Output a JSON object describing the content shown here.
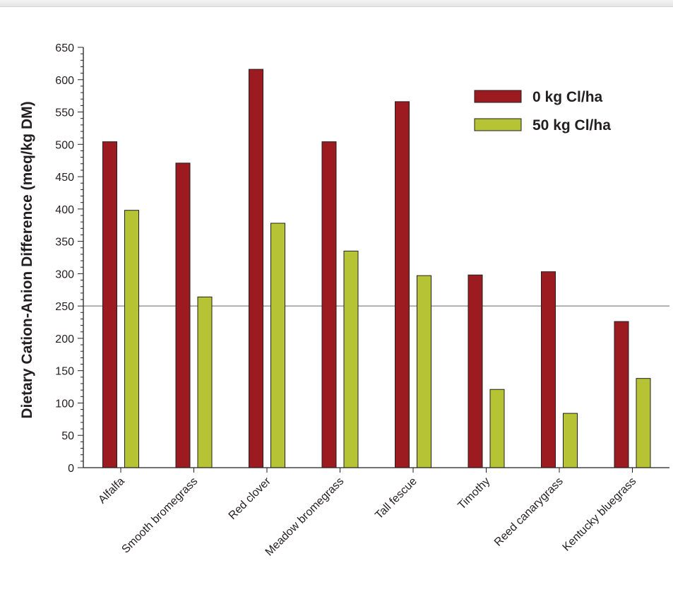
{
  "chart_data": {
    "type": "bar",
    "ylabel": "Dietary Cation-Anion Difference (meq/kg DM)",
    "xlabel": "",
    "ylim": [
      0,
      650
    ],
    "yticks": [
      0,
      50,
      100,
      150,
      200,
      250,
      300,
      350,
      400,
      450,
      500,
      550,
      600,
      650
    ],
    "reference_line": 250,
    "grid": false,
    "legend_position": "top-right",
    "categories": [
      "Alfalfa",
      "Smooth bromegrass",
      "Red clover",
      "Meadow bromegrass",
      "Tall fescue",
      "Timothy",
      "Reed canarygrass",
      "Kentucky bluegrass"
    ],
    "series": [
      {
        "name": "0 kg Cl/ha",
        "color": "#9b1b21",
        "values": [
          504,
          471,
          616,
          504,
          566,
          298,
          303,
          226
        ]
      },
      {
        "name": "50 kg Cl/ha",
        "color": "#b5c334",
        "values": [
          398,
          264,
          378,
          335,
          297,
          121,
          84,
          138
        ]
      }
    ]
  }
}
